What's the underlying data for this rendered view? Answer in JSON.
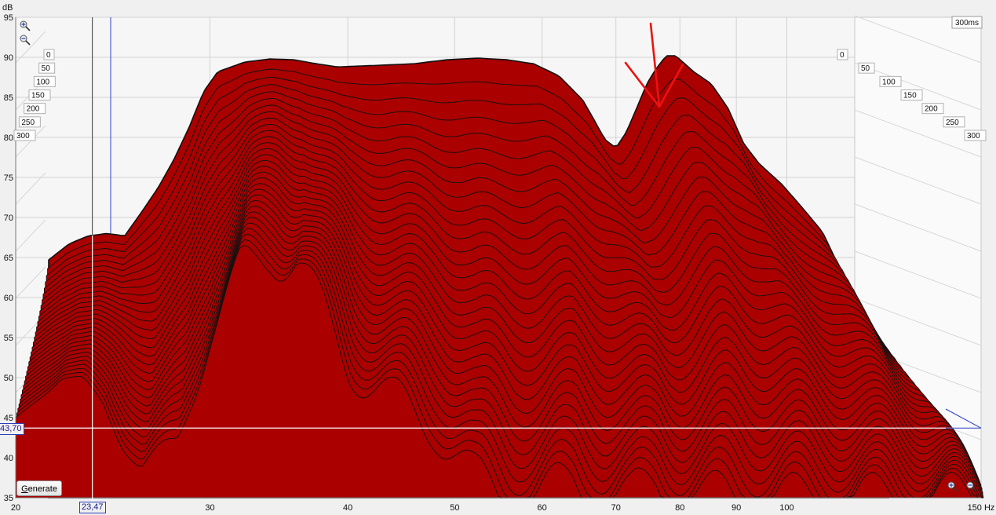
{
  "chart_data": {
    "type": "area",
    "subtype": "waterfall",
    "ylabel": "dB",
    "xlabel": "Hz",
    "ylim": [
      35,
      95
    ],
    "xlim": [
      20,
      150
    ],
    "xscale": "log",
    "yticks": [
      "95",
      "90",
      "85",
      "80",
      "75",
      "70",
      "65",
      "60",
      "55",
      "50",
      "45",
      "40",
      "35"
    ],
    "xticks": [
      "20",
      "30",
      "40",
      "50",
      "60",
      "70",
      "80",
      "90",
      "100",
      "150 Hz"
    ],
    "time_ticks": [
      "0",
      "50",
      "100",
      "150",
      "200",
      "250",
      "300"
    ],
    "time_range_label": "300ms",
    "fill_color": "#aa0000",
    "slices": 31,
    "series": [
      {
        "time_ms": 0,
        "x": [
          20,
          21,
          22,
          23,
          24,
          25,
          26,
          27,
          28,
          29,
          30,
          32,
          34,
          36,
          38,
          40,
          44,
          48,
          52,
          56,
          60,
          64,
          68,
          72,
          74,
          76,
          78,
          80,
          82,
          84,
          86,
          88,
          90,
          94,
          98,
          102,
          106,
          110,
          116,
          122,
          128,
          134,
          140,
          146,
          150
        ],
        "values": [
          64.5,
          66.5,
          67.5,
          67.8,
          67.5,
          70.5,
          73.5,
          77.0,
          81.0,
          85.5,
          88.0,
          89.2,
          89.6,
          89.5,
          89.0,
          88.6,
          88.8,
          89.0,
          89.5,
          89.7,
          89.5,
          89.0,
          87.5,
          84.5,
          82.0,
          79.5,
          78.5,
          80.5,
          83.5,
          86.5,
          88.5,
          90.0,
          90.0,
          88.0,
          86.5,
          83.5,
          79.0,
          76.5,
          74.0,
          71.0,
          68.0,
          63.0,
          58.0,
          50.0,
          44.0
        ]
      },
      {
        "time_ms": 300,
        "x": [
          20,
          21,
          22,
          23,
          24,
          25,
          26,
          28,
          30,
          32,
          34,
          36,
          38,
          40,
          44,
          48,
          52,
          56,
          60,
          64,
          68,
          72,
          76,
          80,
          84,
          88,
          92,
          96,
          100,
          110,
          120,
          130,
          140,
          150
        ],
        "values": [
          45.0,
          47.5,
          49.8,
          49.5,
          47.0,
          42.0,
          38.5,
          42.0,
          55.0,
          64.0,
          65.5,
          64.5,
          58.0,
          52.0,
          47.0,
          44.0,
          37.5,
          35.0,
          35.5,
          37.0,
          35.2,
          35.0,
          37.0,
          35.5,
          35.0,
          35.5,
          35.0,
          35.0,
          35.0,
          35.0,
          35.0,
          35.0,
          35.0,
          35.0
        ]
      }
    ],
    "cursor": {
      "x_label": "23,47",
      "y_label": "43,70",
      "y_value": 43.7
    },
    "annotation": "red arrow pointing at dip near 76 Hz",
    "grid": true
  },
  "controls": {
    "generate_label": "Generate",
    "generate_accesskey_letter": "G",
    "generate_rest": "enerate"
  }
}
